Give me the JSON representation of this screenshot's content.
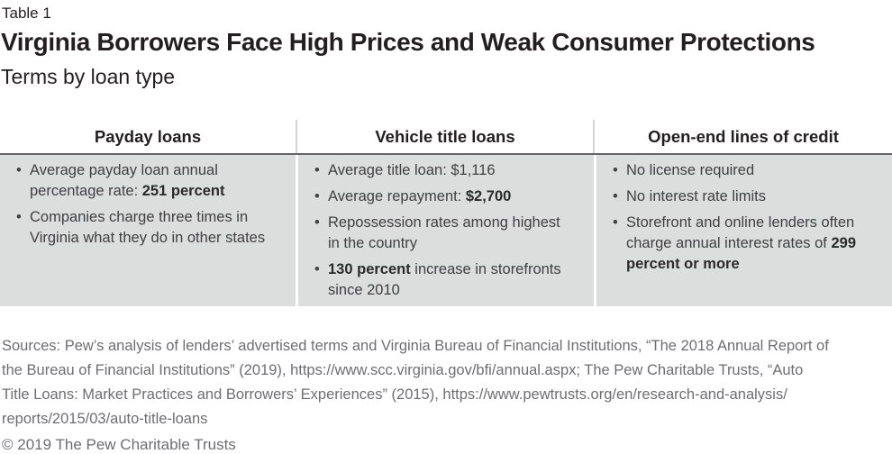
{
  "header": {
    "table_label": "Table 1",
    "title": "Virginia Borrowers Face High Prices and Weak Consumer Protections",
    "subtitle": "Terms by loan type"
  },
  "table": {
    "columns": [
      {
        "header": "Payday loans",
        "bullets": [
          {
            "lines": [
              [
                {
                  "t": "Average payday loan annual"
                }
              ],
              [
                {
                  "t": "percentage rate: "
                },
                {
                  "t": "251 percent",
                  "b": true
                }
              ]
            ]
          },
          {
            "lines": [
              [
                {
                  "t": "Companies charge three times in"
                }
              ],
              [
                {
                  "t": "Virginia what they do in other states"
                }
              ]
            ]
          }
        ]
      },
      {
        "header": "Vehicle title loans",
        "bullets": [
          {
            "lines": [
              [
                {
                  "t": "Average title loan: $1,116"
                }
              ]
            ]
          },
          {
            "lines": [
              [
                {
                  "t": "Average repayment: "
                },
                {
                  "t": "$2,700",
                  "b": true
                }
              ]
            ]
          },
          {
            "lines": [
              [
                {
                  "t": "Repossession rates among highest"
                }
              ],
              [
                {
                  "t": "in the country"
                }
              ]
            ]
          },
          {
            "lines": [
              [
                {
                  "t": "130 percent",
                  "b": true
                },
                {
                  "t": " increase in storefronts"
                }
              ],
              [
                {
                  "t": "since 2010"
                }
              ]
            ]
          }
        ]
      },
      {
        "header": "Open-end lines of credit",
        "bullets": [
          {
            "lines": [
              [
                {
                  "t": "No license required"
                }
              ]
            ]
          },
          {
            "lines": [
              [
                {
                  "t": "No interest rate limits"
                }
              ]
            ]
          },
          {
            "lines": [
              [
                {
                  "t": "Storefront and online lenders often"
                }
              ],
              [
                {
                  "t": "charge annual interest rates of "
                },
                {
                  "t": "299",
                  "b": true
                }
              ],
              [
                {
                  "t": "percent or more",
                  "b": true
                }
              ]
            ]
          }
        ]
      }
    ]
  },
  "footer": {
    "sources_lines": [
      "Sources: Pew’s analysis of lenders’ advertised terms and Virginia Bureau of Financial Institutions, “The 2018 Annual Report of",
      "the Bureau of Financial Institutions” (2019), https://www.scc.virginia.gov/bfi/annual.aspx; The Pew Charitable Trusts, “Auto",
      "Title Loans: Market Practices and Borrowers’ Experiences” (2015), https://www.pewtrusts.org/en/research-and-analysis/",
      "reports/2015/03/auto-title-loans"
    ],
    "copyright": "© 2019 The Pew Charitable Trusts"
  },
  "colors": {
    "title_text": "#231f20",
    "body_text": "#414042",
    "footer_text": "#6d6e71",
    "table_body_bg": "#dcdddd",
    "header_rule": "#636466",
    "header_divider": "#d1d3d4"
  }
}
